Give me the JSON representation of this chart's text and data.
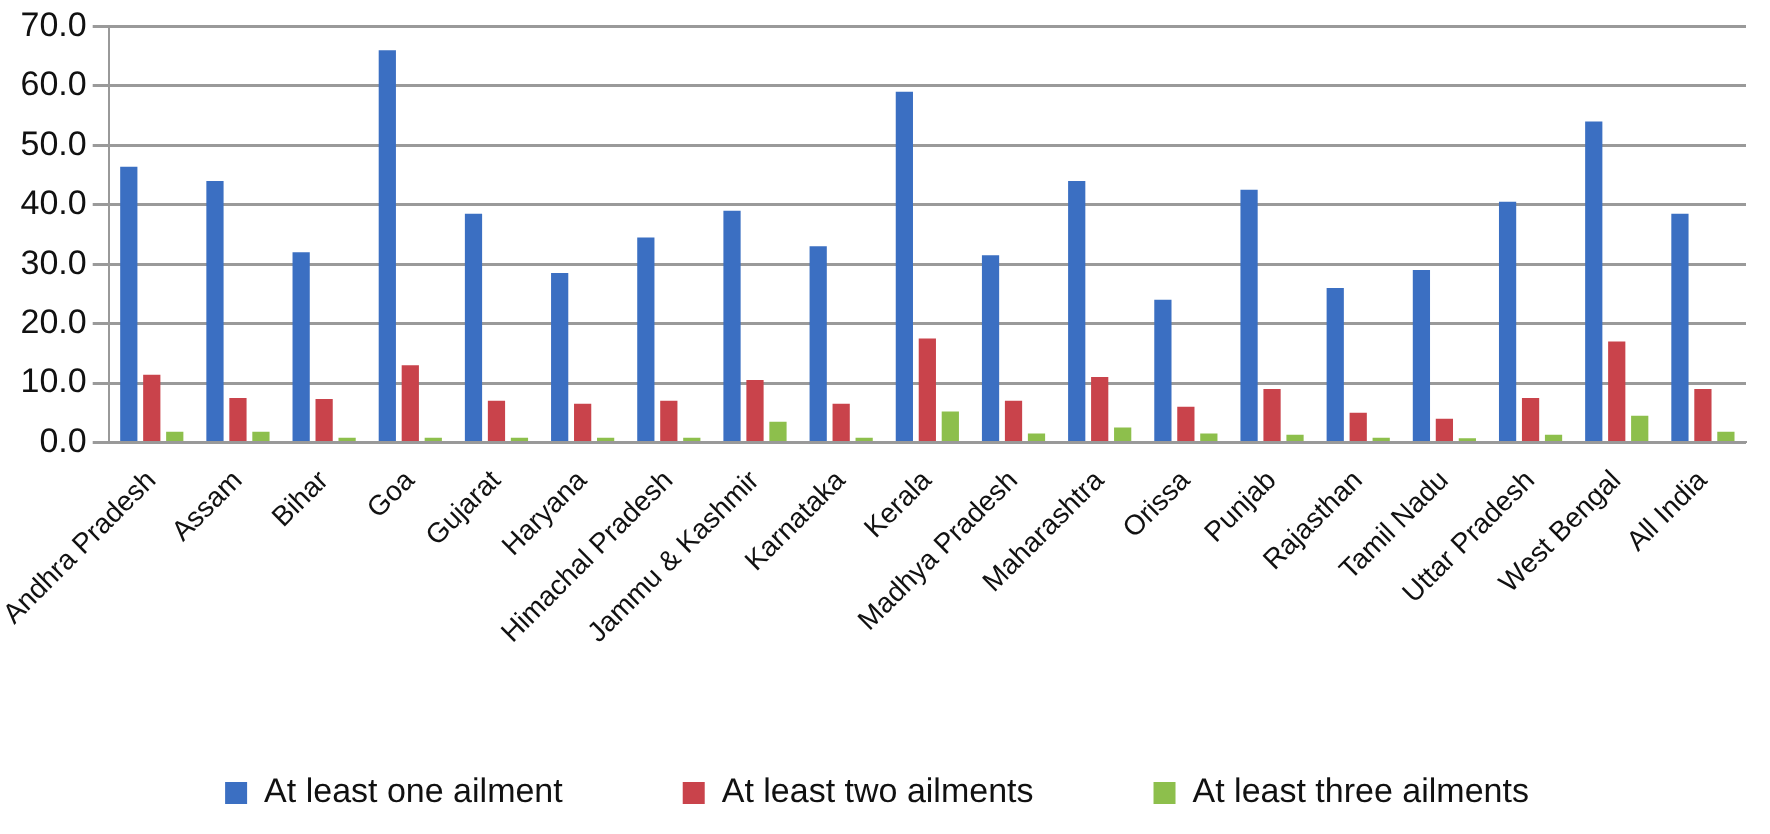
{
  "chart_data": {
    "type": "bar",
    "categories": [
      "Andhra Pradesh",
      "Assam",
      "Bihar",
      "Goa",
      "Gujarat",
      "Haryana",
      "Himachal Pradesh",
      "Jammu & Kashmir",
      "Karnataka",
      "Kerala",
      "Madhya Pradesh",
      "Maharashtra",
      "Orissa",
      "Punjab",
      "Rajasthan",
      "Tamil Nadu",
      "Uttar Pradesh",
      "West Bengal",
      "All India"
    ],
    "series": [
      {
        "name": "At least one ailment",
        "color": "#3b6fc2",
        "values": [
          46.4,
          44,
          32,
          66,
          38.5,
          28.5,
          34.5,
          39,
          33,
          59,
          31.5,
          44,
          24,
          42.5,
          26,
          29,
          40.5,
          54,
          38.5
        ]
      },
      {
        "name": "At least two ailments",
        "color": "#c9434b",
        "values": [
          11.4,
          7.5,
          7.3,
          13,
          7,
          6.5,
          7,
          10.5,
          6.5,
          17.5,
          7,
          11,
          6,
          9,
          5,
          4,
          7.5,
          17,
          9
        ]
      },
      {
        "name": "At least three ailments",
        "color": "#8dbf4c",
        "values": [
          1.8,
          1.8,
          0.8,
          0.8,
          0.8,
          0.8,
          0.8,
          3.5,
          0.8,
          5.2,
          1.5,
          2.5,
          1.5,
          1.3,
          0.8,
          0.7,
          1.3,
          4.5,
          1.8
        ]
      }
    ],
    "ylim": [
      0,
      70
    ],
    "yticks": [
      {
        "value": 0,
        "label": "0.0"
      },
      {
        "value": 10,
        "label": "10.0"
      },
      {
        "value": 20,
        "label": "20.0"
      },
      {
        "value": 30,
        "label": "30.0"
      },
      {
        "value": 40,
        "label": "40.0"
      },
      {
        "value": 50,
        "label": "50.0"
      },
      {
        "value": 60,
        "label": "60.0"
      },
      {
        "value": 70,
        "label": "70.0"
      }
    ],
    "grid": "y",
    "legend": "bottom"
  }
}
